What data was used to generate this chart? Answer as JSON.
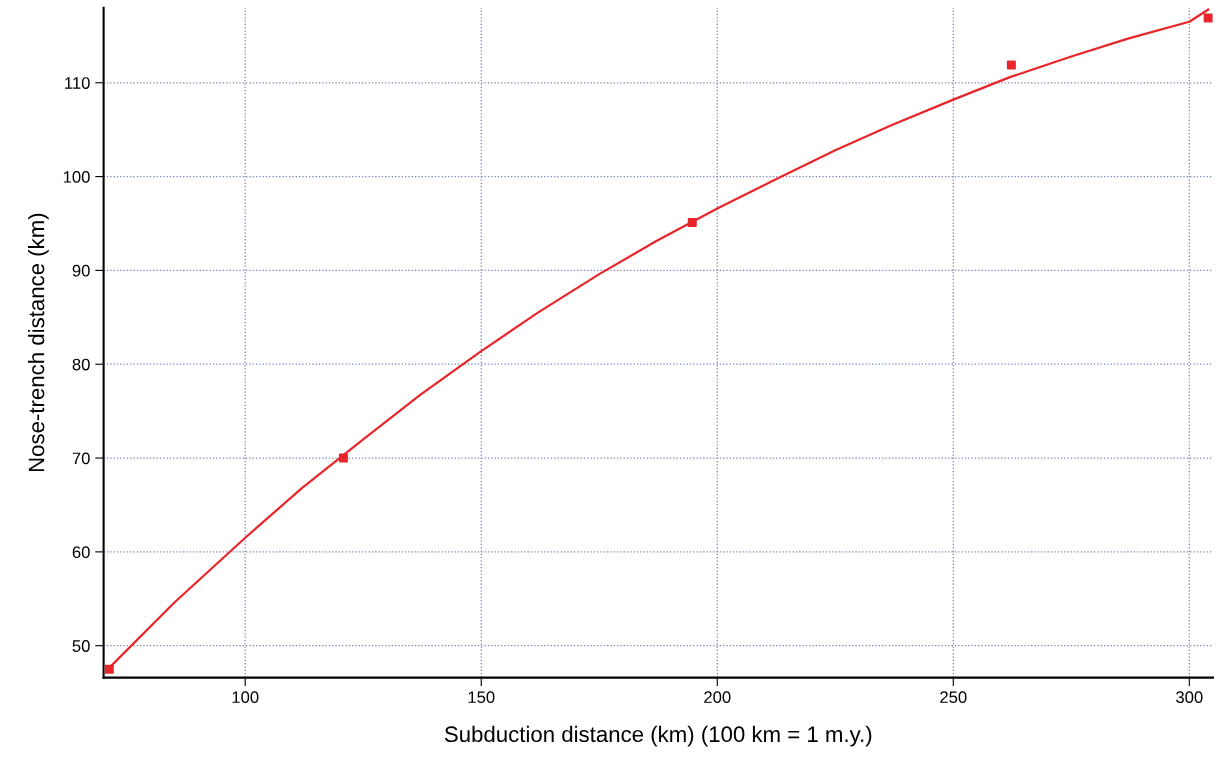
{
  "chart_data": {
    "type": "scatter",
    "xlabel": "Subduction distance (km) (100 km = 1 m.y.)",
    "ylabel": "Nose-trench distance (km)",
    "xlim": [
      70,
      305
    ],
    "ylim": [
      46.6,
      118
    ],
    "xticks": [
      100,
      150,
      200,
      250,
      300
    ],
    "yticks": [
      50,
      60,
      70,
      80,
      90,
      100,
      110
    ],
    "grid": true,
    "series": [
      {
        "color": "#e8262a",
        "marker": "square",
        "x": [
          71.2,
          120.8,
          194.7,
          262.3,
          304.0
        ],
        "values": [
          47.5,
          70.0,
          95.1,
          111.9,
          116.9
        ]
      },
      {
        "type": "line",
        "color": "#e8262a",
        "marker": "none",
        "x": [
          71.5,
          85,
          100,
          112,
          125,
          137,
          150,
          162,
          175,
          187,
          200,
          212,
          225,
          237,
          250,
          262,
          275,
          287,
          300,
          304
        ],
        "values": [
          47.8,
          54.6,
          61.5,
          66.8,
          72.0,
          76.7,
          81.4,
          85.5,
          89.6,
          93.1,
          96.6,
          99.6,
          102.8,
          105.5,
          108.2,
          110.6,
          112.8,
          114.7,
          116.5,
          117.8
        ]
      }
    ]
  }
}
